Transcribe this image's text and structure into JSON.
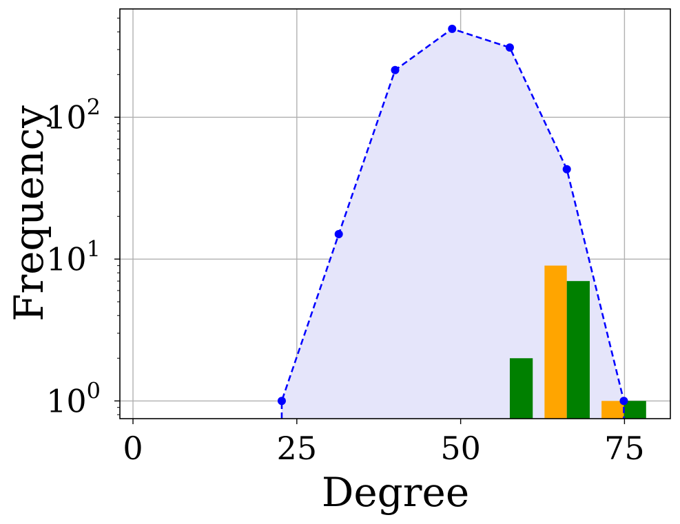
{
  "chart_data": {
    "type": "bar",
    "xlabel": "Degree",
    "ylabel": "Frequency",
    "xlim": [
      -2,
      82
    ],
    "ylim": [
      0.75,
      580
    ],
    "yscale": "log",
    "grid": true,
    "x_ticks": [
      0,
      25,
      50,
      75
    ],
    "y_ticks": [
      {
        "value": 1,
        "base": "10",
        "exp": "0"
      },
      {
        "value": 10,
        "base": "10",
        "exp": "1"
      },
      {
        "value": 100,
        "base": "10",
        "exp": "2"
      }
    ],
    "line_series": {
      "style": "dashed",
      "color": "#0000ff",
      "fill_color": "#e5e5fa",
      "x": [
        22.7,
        31.4,
        40.0,
        48.7,
        57.5,
        66.2,
        74.9
      ],
      "y": [
        1,
        15,
        215,
        420,
        310,
        43,
        1
      ]
    },
    "bar_series": [
      {
        "color": "#ffa500",
        "bars": [
          {
            "x0": 62.8,
            "x1": 66.2,
            "value": 9
          },
          {
            "x0": 71.5,
            "x1": 74.9,
            "value": 1
          }
        ]
      },
      {
        "color": "#008000",
        "bars": [
          {
            "x0": 57.5,
            "x1": 61.0,
            "value": 2
          },
          {
            "x0": 66.2,
            "x1": 69.7,
            "value": 7
          },
          {
            "x0": 74.9,
            "x1": 78.3,
            "value": 1
          }
        ]
      }
    ]
  }
}
